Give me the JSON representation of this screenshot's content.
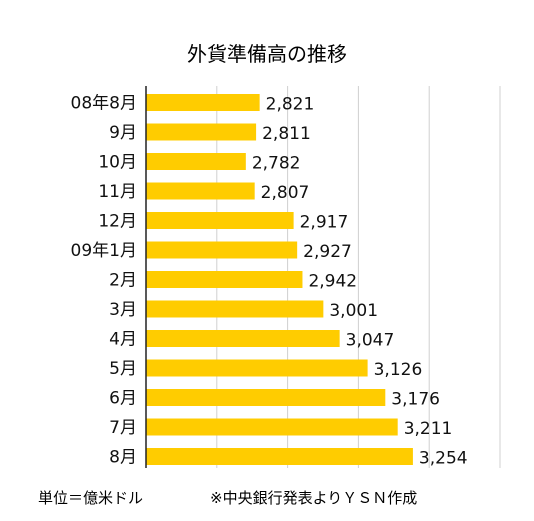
{
  "chart_data": {
    "type": "bar",
    "orientation": "horizontal",
    "title": "外貨準備高の推移",
    "categories": [
      "08年8月",
      "9月",
      "10月",
      "11月",
      "12月",
      "09年1月",
      "2月",
      "3月",
      "4月",
      "5月",
      "6月",
      "7月",
      "8月"
    ],
    "values": [
      2821,
      2811,
      2782,
      2807,
      2917,
      2927,
      2942,
      3001,
      3047,
      3126,
      3176,
      3211,
      3254
    ],
    "value_labels": [
      "2,821",
      "2,811",
      "2,782",
      "2,807",
      "2,917",
      "2,927",
      "2,942",
      "3,001",
      "3,047",
      "3,126",
      "3,176",
      "3,211",
      "3,254"
    ],
    "xlim": [
      2500,
      3500
    ],
    "grid": true,
    "legend": "none",
    "colors": {
      "bar": "#FFCC00",
      "grid": "#d0d0d0",
      "axis": "#222222",
      "text": "#111111"
    }
  },
  "footnotes": {
    "unit": "単位＝億米ドル",
    "source": "※中央銀行発表よりＹＳＮ作成"
  }
}
